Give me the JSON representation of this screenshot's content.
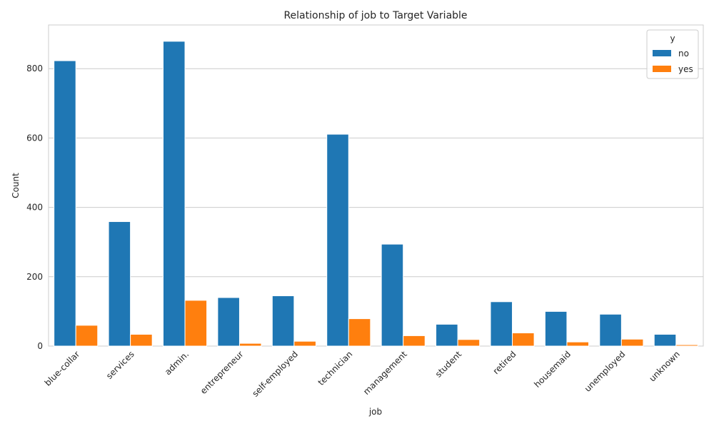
{
  "chart_data": {
    "type": "bar",
    "title": "Relationship of job to Target Variable",
    "xlabel": "job",
    "ylabel": "Count",
    "ylim": [
      0,
      926
    ],
    "yticks": [
      0,
      200,
      400,
      600,
      800
    ],
    "grid": true,
    "legend": {
      "title": "y",
      "placement": "top-right"
    },
    "categories": [
      "blue-collar",
      "services",
      "admin.",
      "entrepreneur",
      "self-employed",
      "technician",
      "management",
      "student",
      "retired",
      "housemaid",
      "unemployed",
      "unknown"
    ],
    "series": [
      {
        "name": "no",
        "color": "#1f77b4",
        "values": [
          823,
          359,
          879,
          140,
          145,
          611,
          294,
          63,
          128,
          100,
          92,
          34
        ]
      },
      {
        "name": "yes",
        "color": "#ff7f0e",
        "values": [
          60,
          34,
          132,
          8,
          14,
          79,
          30,
          19,
          38,
          12,
          20,
          4
        ]
      }
    ]
  }
}
